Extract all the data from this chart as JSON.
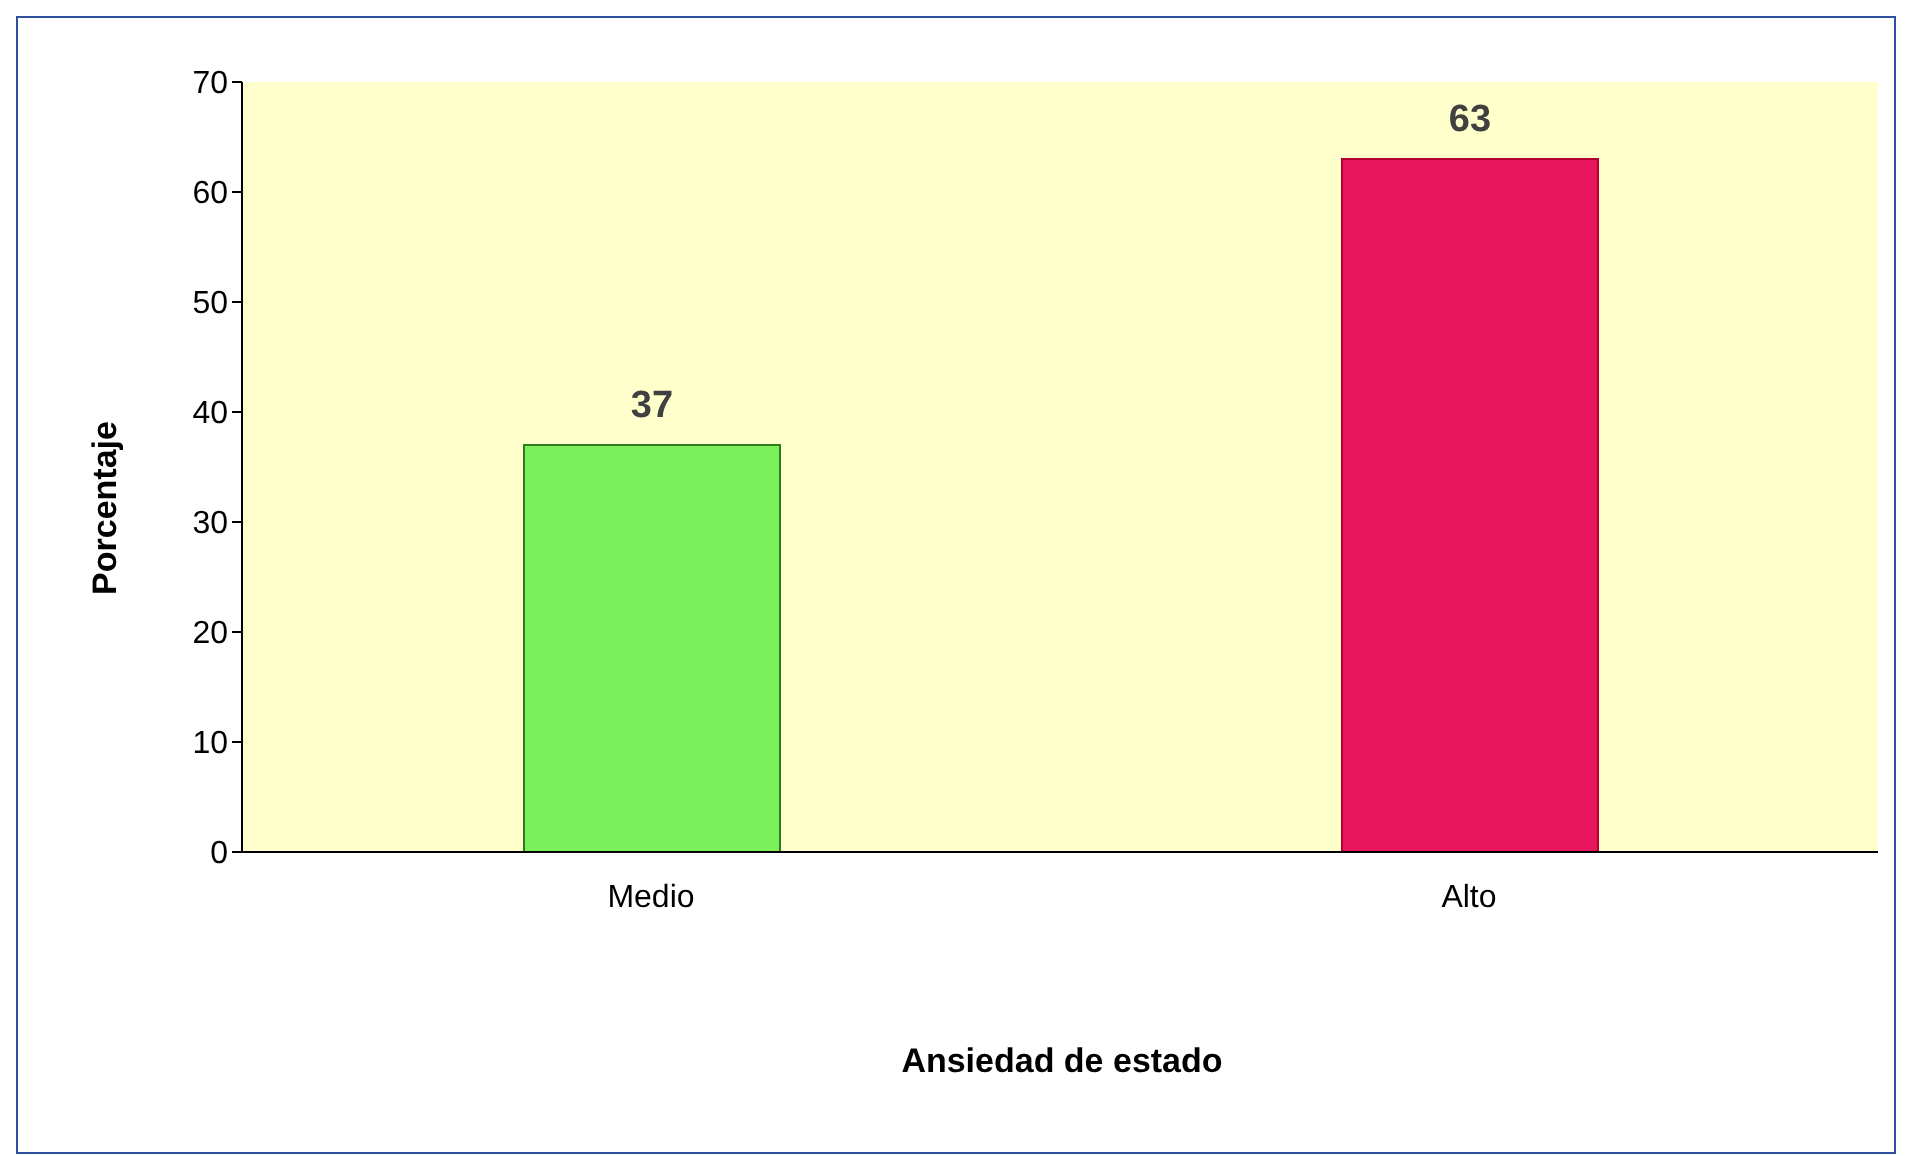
{
  "chart_data": {
    "type": "bar",
    "xlabel": "Ansiedad de estado",
    "ylabel": "Porcentaje",
    "categories": [
      "Medio",
      "Alto"
    ],
    "values": [
      37,
      63
    ],
    "colors": [
      "#7cf05a",
      "#e8175d"
    ],
    "ylim": [
      0,
      70
    ],
    "yticks": [
      0,
      10,
      20,
      30,
      40,
      50,
      60,
      70
    ],
    "grid": false,
    "data_labels": true
  }
}
